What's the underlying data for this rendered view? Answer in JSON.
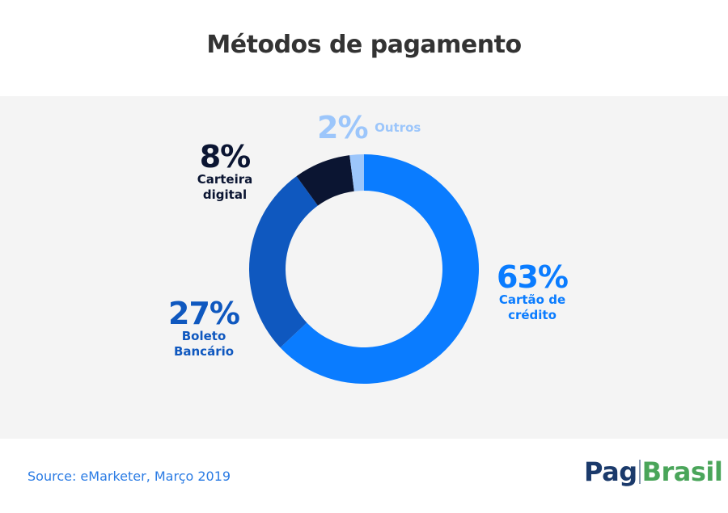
{
  "title": "Métodos de pagamento",
  "source": "Source: eMarketer, Março 2019",
  "logo": {
    "word1": "Pag",
    "word2": "Brasil"
  },
  "colors": {
    "credit": "#0a7cff",
    "boleto": "#0f58bf",
    "wallet": "#0b1532",
    "other": "#9cc6fb",
    "panel": "#f4f4f4"
  },
  "chart_data": {
    "type": "pie",
    "variant": "donut",
    "title": "Métodos de pagamento",
    "start": "top, clockwise",
    "slices": [
      {
        "label": "Cartão de crédito",
        "value": 63,
        "display": "63%",
        "color": "#0a7cff"
      },
      {
        "label": "Boleto Bancário",
        "value": 27,
        "display": "27%",
        "color": "#0f58bf"
      },
      {
        "label": "Carteira digital",
        "value": 8,
        "display": "8%",
        "color": "#0b1532"
      },
      {
        "label": "Outros",
        "value": 2,
        "display": "2%",
        "color": "#9cc6fb"
      }
    ],
    "labels": {
      "credit": {
        "pct": "63%",
        "line1": "Cartão de",
        "line2": "crédito"
      },
      "boleto": {
        "pct": "27%",
        "line1": "Boleto",
        "line2": "Bancário"
      },
      "wallet": {
        "pct": "8%",
        "line1": "Carteira",
        "line2": "digital"
      },
      "other": {
        "pct": "2%",
        "name": "Outros"
      }
    }
  }
}
